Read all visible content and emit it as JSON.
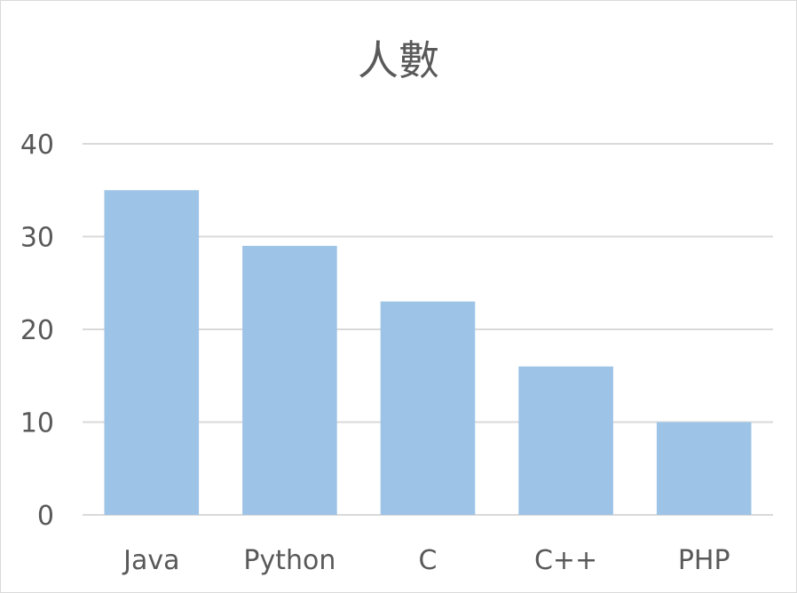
{
  "chart_data": {
    "type": "bar",
    "title": "人數",
    "categories": [
      "Java",
      "Python",
      "C",
      "C++",
      "PHP"
    ],
    "values": [
      35,
      29,
      23,
      16,
      10
    ],
    "xlabel": "",
    "ylabel": "",
    "ylim": [
      0,
      40
    ],
    "yticks": [
      0,
      10,
      20,
      30,
      40
    ],
    "grid": true,
    "legend": "none",
    "bar_color": "#9dc3e6",
    "grid_color": "#d9d9d9",
    "text_color": "#595959"
  }
}
